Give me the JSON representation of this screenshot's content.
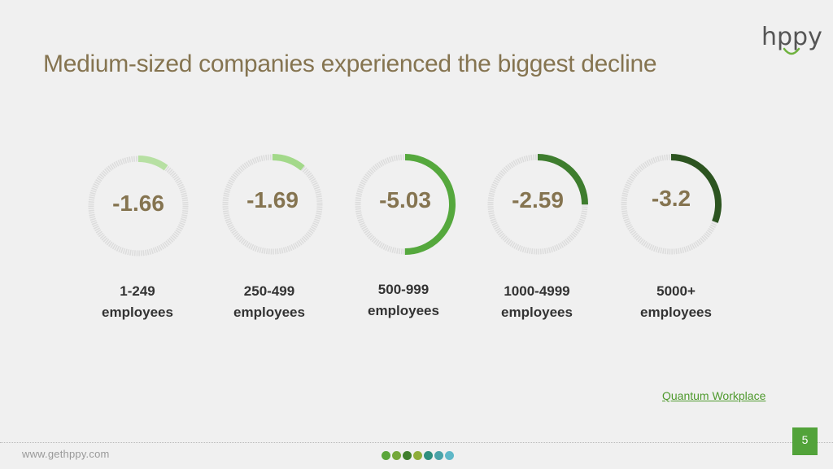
{
  "slide": {
    "title": "Medium-sized companies experienced the biggest decline",
    "logo_text": "hppy",
    "source_link": "Quantum Workplace",
    "footer_url": "www.gethppy.com",
    "page_number": "5",
    "footer_dots": [
      "#5aa63a",
      "#74a83a",
      "#3f7f2e",
      "#8fae3a",
      "#2f8f7e",
      "#4aa3a8",
      "#5fb8c8"
    ]
  },
  "gauges": [
    {
      "value": "-1.66",
      "label_line1": "1-249",
      "label_line2": "employees",
      "fill_fraction": 0.1,
      "color": "#b7e0a3"
    },
    {
      "value": "-1.69",
      "label_line1": "250-499",
      "label_line2": "employees",
      "fill_fraction": 0.11,
      "color": "#a3d98a"
    },
    {
      "value": "-5.03",
      "label_line1": "500-999",
      "label_line2": "employees",
      "fill_fraction": 0.5,
      "color": "#55a83d"
    },
    {
      "value": "-2.59",
      "label_line1": "1000-4999",
      "label_line2": "employees",
      "fill_fraction": 0.25,
      "color": "#3e7d2e"
    },
    {
      "value": "-3.2",
      "label_line1": "5000+",
      "label_line2": "employees",
      "fill_fraction": 0.31,
      "color": "#2c5420"
    }
  ]
}
